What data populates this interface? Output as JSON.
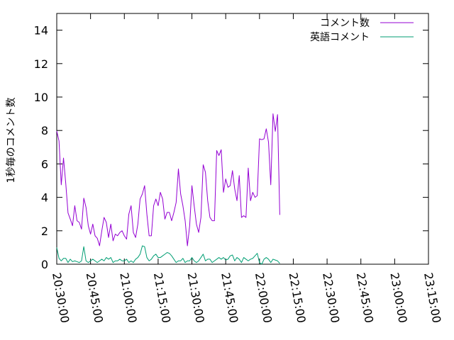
{
  "chart_data": {
    "type": "line",
    "title": "",
    "xlabel": "",
    "ylabel": "1秒毎のコメント数",
    "ylim": [
      0,
      15
    ],
    "xlim": [
      "20:30:00",
      "23:15:00"
    ],
    "y_ticks": [
      "0",
      "2",
      "4",
      "6",
      "8",
      "10",
      "12",
      "14"
    ],
    "x_ticks": [
      "20:30:00",
      "20:45:00",
      "21:00:00",
      "21:15:00",
      "21:30:00",
      "21:45:00",
      "22:00:00",
      "22:15:00",
      "22:30:00",
      "22:45:00",
      "23:00:00",
      "23:15:00"
    ],
    "grid": false,
    "legend_position": "top-right",
    "sample_interval_seconds": 60,
    "x_start": "20:30:00",
    "series": [
      {
        "name": "コメント数",
        "color": "#9400d3",
        "values": [
          7.97,
          7.37,
          4.75,
          6.35,
          4.83,
          3.07,
          2.7,
          2.3,
          3.5,
          2.6,
          2.5,
          2.1,
          3.95,
          3.4,
          2.3,
          1.8,
          2.4,
          1.7,
          1.55,
          1.1,
          2.0,
          2.8,
          2.5,
          1.6,
          2.4,
          1.4,
          1.8,
          1.7,
          1.9,
          2.0,
          1.7,
          1.5,
          3.0,
          3.5,
          1.9,
          1.6,
          2.4,
          3.9,
          4.2,
          4.7,
          3.0,
          1.7,
          1.7,
          3.5,
          3.9,
          3.5,
          4.3,
          3.9,
          2.7,
          3.1,
          3.1,
          2.6,
          3.1,
          3.7,
          5.7,
          4.2,
          3.5,
          2.6,
          1.1,
          2.3,
          4.7,
          3.5,
          2.4,
          1.9,
          2.8,
          5.95,
          5.5,
          3.8,
          2.8,
          2.6,
          2.6,
          6.8,
          6.5,
          6.85,
          4.3,
          5.1,
          4.6,
          4.7,
          5.6,
          4.5,
          3.8,
          5.3,
          2.8,
          2.9,
          2.8,
          5.75,
          3.8,
          4.3,
          4.0,
          4.1,
          7.5,
          7.45,
          7.5,
          8.1,
          7.3,
          4.75,
          9.0,
          7.95,
          8.95,
          2.95
        ]
      },
      {
        "name": "英語コメント",
        "color": "#009e73",
        "values": [
          1.0,
          0.35,
          0.2,
          0.35,
          0.35,
          0.1,
          0.3,
          0.15,
          0.2,
          0.15,
          0.1,
          0.2,
          1.05,
          0.2,
          0.1,
          0.2,
          0.3,
          0.2,
          0.1,
          0.2,
          0.3,
          0.2,
          0.4,
          0.3,
          0.4,
          0.1,
          0.2,
          0.2,
          0.3,
          0.2,
          0.2,
          0.3,
          0.1,
          0.2,
          0.1,
          0.3,
          0.4,
          0.6,
          1.1,
          1.05,
          0.4,
          0.2,
          0.3,
          0.5,
          0.6,
          0.4,
          0.4,
          0.5,
          0.6,
          0.7,
          0.65,
          0.5,
          0.3,
          0.1,
          0.2,
          0.2,
          0.35,
          0.1,
          0.2,
          0.2,
          0.4,
          0.2,
          0.1,
          0.2,
          0.4,
          0.6,
          0.2,
          0.3,
          0.3,
          0.1,
          0.2,
          0.3,
          0.4,
          0.3,
          0.4,
          0.25,
          0.3,
          0.5,
          0.55,
          0.2,
          0.4,
          0.3,
          0.1,
          0.4,
          0.3,
          0.2,
          0.3,
          0.35,
          0.5,
          0.65,
          0.1,
          0.0,
          0.3,
          0.4,
          0.3,
          0.1,
          0.3,
          0.25,
          0.2,
          0.05
        ]
      }
    ]
  }
}
